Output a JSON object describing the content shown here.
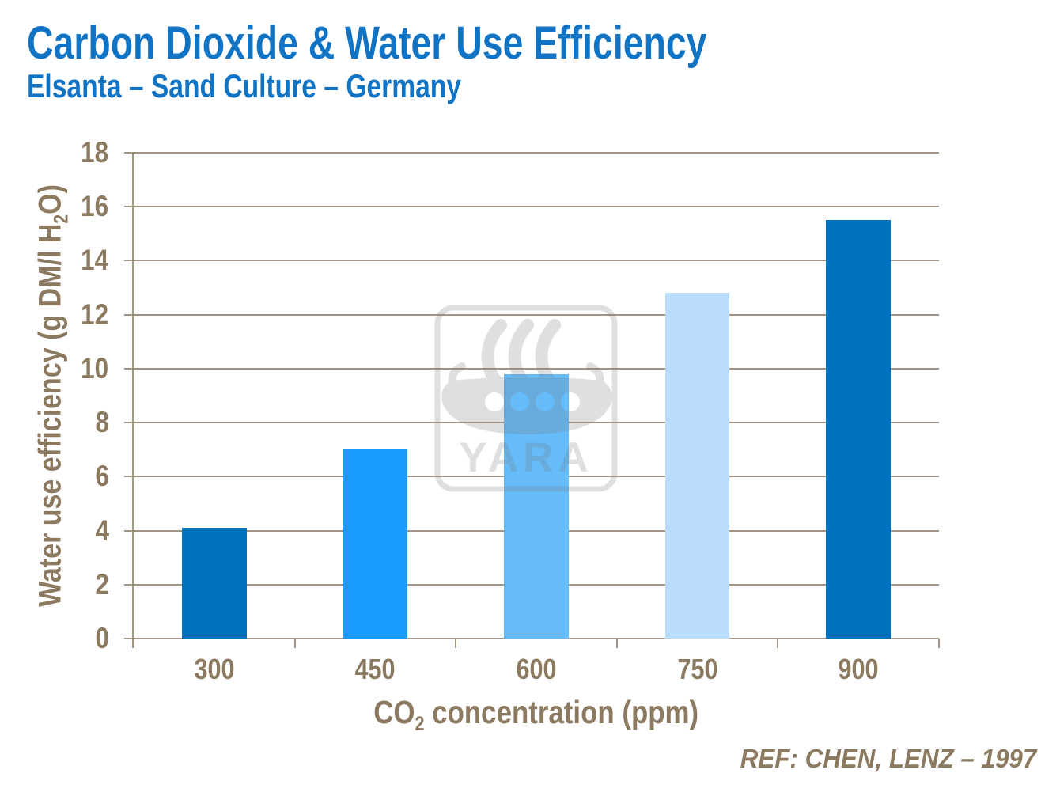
{
  "slide": {
    "title": "Carbon Dioxide & Water Use Efficiency",
    "subtitle": "Elsanta – Sand Culture – Germany",
    "reference": "REF: CHEN, LENZ – 1997"
  },
  "watermark": {
    "text": "YARA"
  },
  "colors": {
    "title_blue": "#1173C4",
    "axis_text_brown": "#8B7960",
    "axis_line": "#A29483",
    "watermark_gray": "#E3E3E3",
    "background": "#FFFFFF"
  },
  "chart_data": {
    "type": "bar",
    "title": "",
    "categories": [
      "300",
      "450",
      "600",
      "750",
      "900"
    ],
    "values": [
      4.1,
      7.0,
      9.8,
      12.8,
      15.5
    ],
    "bar_colors": [
      "#0071BD",
      "#189CFD",
      "#66BCF9",
      "#B9DDFB",
      "#0071BD"
    ],
    "xlabel": "CO₂ concentration (ppm)",
    "ylabel": "Water use efficiency (g DM/l H₂O)",
    "ylim": [
      0,
      18
    ],
    "ytick_step": 2,
    "grid": true,
    "legend": false
  }
}
